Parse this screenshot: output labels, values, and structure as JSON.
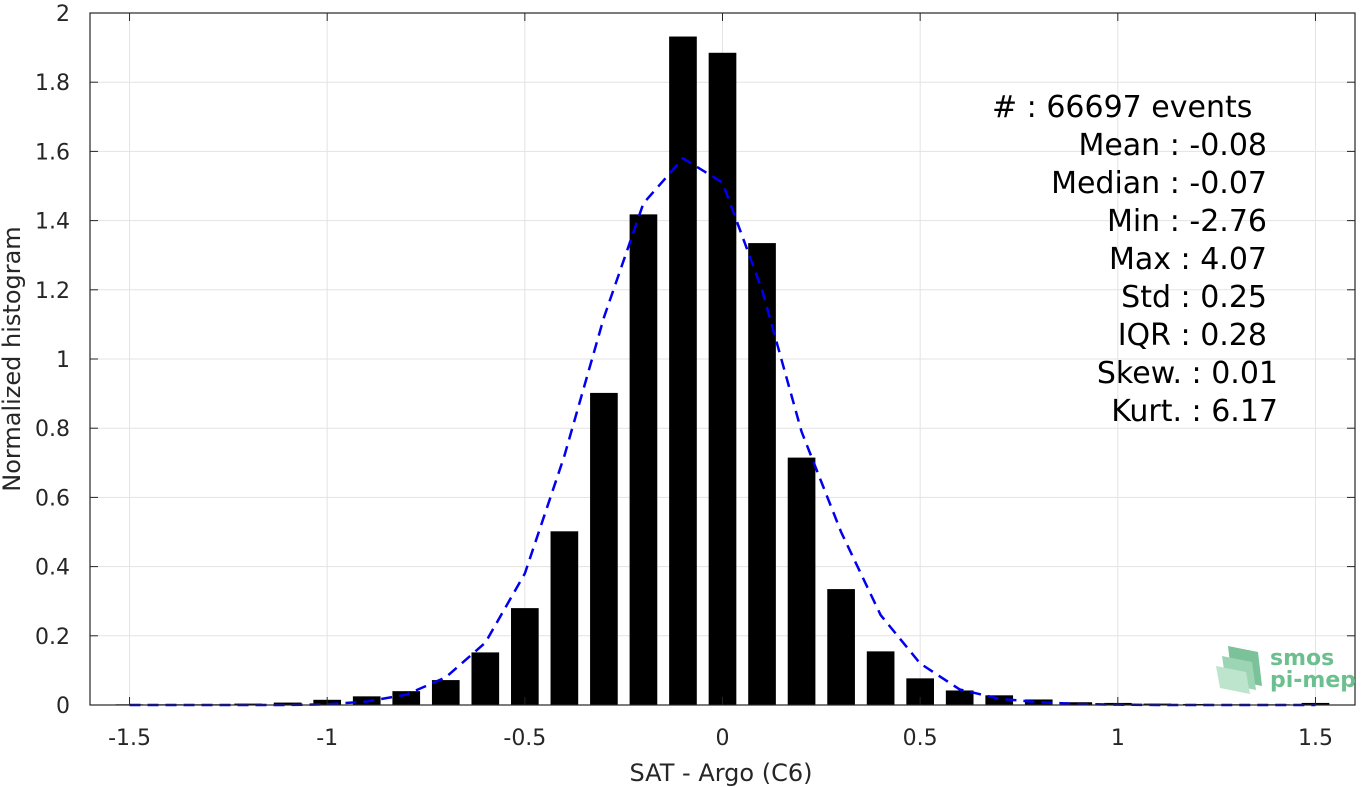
{
  "chart_data": {
    "type": "bar",
    "xlabel": "SAT - Argo (C6)",
    "ylabel": "Normalized histogram",
    "xlim": [
      -1.6,
      1.6
    ],
    "ylim": [
      0,
      2
    ],
    "xticks": [
      -1.5,
      -1,
      -0.5,
      0,
      0.5,
      1,
      1.5
    ],
    "xtick_labels": [
      "-1.5",
      "-1",
      "-0.5",
      "0",
      "0.5",
      "1",
      "1.5"
    ],
    "yticks": [
      0,
      0.2,
      0.4,
      0.6,
      0.8,
      1,
      1.2,
      1.4,
      1.6,
      1.8,
      2
    ],
    "ytick_labels": [
      "0",
      "0.2",
      "0.4",
      "0.6",
      "0.8",
      "1",
      "1.2",
      "1.4",
      "1.6",
      "1.8",
      "2"
    ],
    "grid": true,
    "bar_width": 0.07,
    "series": [
      {
        "type": "bar",
        "color": "#000000",
        "x": [
          -1.5,
          -1.4,
          -1.3,
          -1.2,
          -1.1,
          -1.0,
          -0.9,
          -0.8,
          -0.7,
          -0.6,
          -0.5,
          -0.4,
          -0.3,
          -0.2,
          -0.1,
          0.0,
          0.1,
          0.2,
          0.3,
          0.4,
          0.5,
          0.6,
          0.7,
          0.8,
          0.9,
          1.0,
          1.1,
          1.2,
          1.3,
          1.4,
          1.5
        ],
        "values": [
          0.002,
          0.002,
          0.002,
          0.004,
          0.007,
          0.015,
          0.025,
          0.04,
          0.072,
          0.152,
          0.28,
          0.502,
          0.902,
          1.418,
          1.932,
          1.885,
          1.335,
          0.715,
          0.335,
          0.155,
          0.077,
          0.042,
          0.028,
          0.016,
          0.008,
          0.006,
          0.004,
          0.003,
          0.002,
          0.002,
          0.006
        ]
      },
      {
        "type": "line",
        "style": "dashed",
        "color": "#0000ee",
        "x": [
          -1.5,
          -1.4,
          -1.3,
          -1.2,
          -1.1,
          -1.0,
          -0.9,
          -0.8,
          -0.7,
          -0.6,
          -0.5,
          -0.4,
          -0.3,
          -0.2,
          -0.1,
          0.0,
          0.1,
          0.2,
          0.3,
          0.4,
          0.5,
          0.6,
          0.7,
          0.8,
          0.9,
          1.0,
          1.1,
          1.2,
          1.3,
          1.4,
          1.5
        ],
        "values": [
          0.0,
          0.0,
          0.0,
          0.0,
          0.0,
          0.002,
          0.01,
          0.03,
          0.08,
          0.18,
          0.38,
          0.72,
          1.12,
          1.45,
          1.58,
          1.51,
          1.2,
          0.79,
          0.5,
          0.26,
          0.12,
          0.045,
          0.018,
          0.008,
          0.003,
          0.001,
          0.0,
          0.0,
          0.0,
          0.0,
          0.0
        ]
      }
    ],
    "annotations": [
      "#  : 66697 events",
      "Mean : -0.08",
      "Median : -0.07",
      "Min : -2.76",
      "Max : 4.07",
      "Std : 0.25",
      "IQR : 0.28",
      "Skew. : 0.01",
      "Kurt. : 6.17"
    ]
  },
  "logo": {
    "line1": "smos",
    "line2": "pi-mep",
    "color": "#6cbf8e"
  }
}
